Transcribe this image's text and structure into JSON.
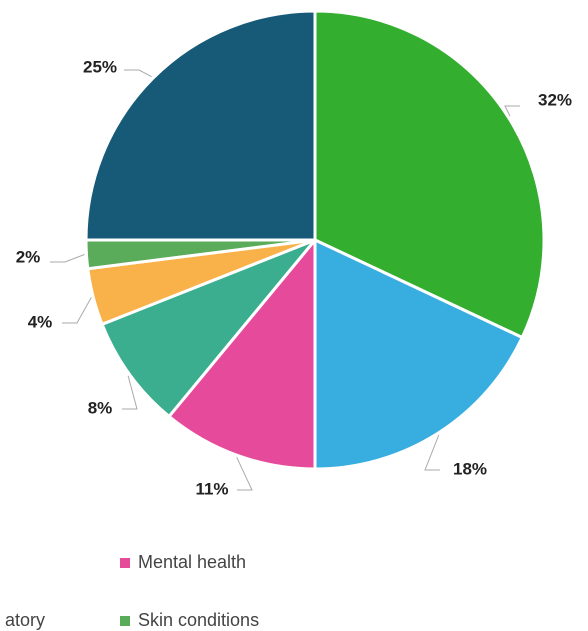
{
  "chart_data": {
    "type": "pie",
    "categories": [
      null,
      null,
      "Mental health",
      null,
      "atory",
      "Skin conditions",
      null
    ],
    "values": [
      32,
      18,
      11,
      8,
      4,
      2,
      25
    ],
    "value_labels": [
      "32%",
      "18%",
      "11%",
      "8%",
      "4%",
      "2%",
      "25%"
    ],
    "colors": [
      "#33ae2f",
      "#38ade0",
      "#e64b9b",
      "#3aae8e",
      "#f9b24a",
      "#5aab5a",
      "#175a78"
    ]
  }
}
